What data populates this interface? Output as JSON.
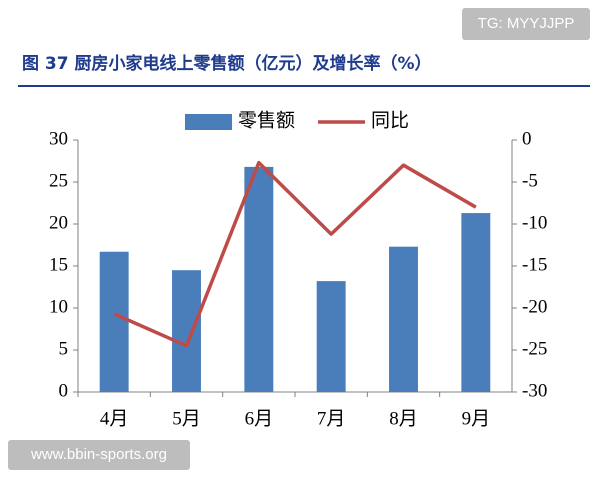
{
  "watermark_top": "TG: MYYJJPP",
  "watermark_bottom": "www.bbin-sports.org",
  "chart_data": {
    "type": "bar-line",
    "title": "图 37 厨房小家电线上零售额（亿元）及增长率（%）",
    "categories": [
      "4月",
      "5月",
      "6月",
      "7月",
      "8月",
      "9月"
    ],
    "series": [
      {
        "name": "零售额",
        "color": "#4a7ebb",
        "type": "bar",
        "values": [
          16.7,
          14.5,
          26.8,
          13.2,
          17.3,
          21.3
        ]
      },
      {
        "name": "同比",
        "color": "#be4b48",
        "type": "line",
        "axis": "y2",
        "values": [
          -20.7,
          -24.5,
          -2.7,
          -11.2,
          -3,
          -8
        ]
      }
    ],
    "ylim": [
      0,
      30
    ],
    "yticks": [
      0,
      5,
      10,
      15,
      20,
      25,
      30
    ],
    "y2lim": [
      -30,
      0
    ],
    "y2ticks": [
      -30,
      -25,
      -20,
      -15,
      -10,
      -5,
      0
    ],
    "grid": false,
    "legend": "top"
  }
}
